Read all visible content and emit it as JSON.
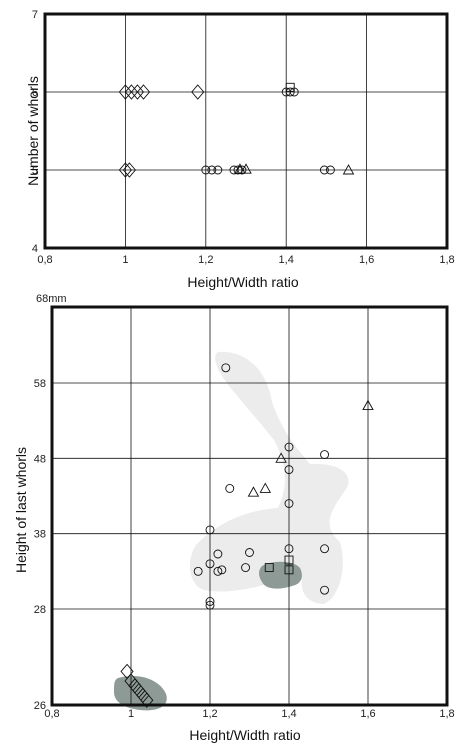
{
  "chart_data": [
    {
      "type": "scatter",
      "title": "",
      "xlabel": "Height/Width ratio",
      "ylabel": "Number of whorls",
      "xlim": [
        0.8,
        1.8
      ],
      "ylim": [
        4,
        7
      ],
      "x_ticks": [
        "0,8",
        "1",
        "1,2",
        "1,4",
        "1,6",
        "1,8"
      ],
      "y_ticks": [
        "4",
        "5",
        "6",
        "7"
      ],
      "grid": true,
      "series": [
        {
          "marker": "diamond",
          "points": [
            [
              1.0,
              6
            ],
            [
              1.015,
              6
            ],
            [
              1.03,
              6
            ],
            [
              1.045,
              6
            ],
            [
              1.18,
              6
            ],
            [
              1.0,
              5
            ],
            [
              1.01,
              5
            ]
          ]
        },
        {
          "marker": "circle",
          "points": [
            [
              1.2,
              5
            ],
            [
              1.215,
              5
            ],
            [
              1.23,
              5
            ],
            [
              1.27,
              5
            ],
            [
              1.28,
              5
            ],
            [
              1.29,
              5
            ],
            [
              1.4,
              6
            ],
            [
              1.41,
              6
            ],
            [
              1.42,
              6
            ],
            [
              1.495,
              5
            ],
            [
              1.51,
              5
            ]
          ]
        },
        {
          "marker": "square",
          "points": [
            [
              1.41,
              6.06
            ]
          ]
        },
        {
          "marker": "triangle",
          "points": [
            [
              1.285,
              5.01
            ],
            [
              1.3,
              5.01
            ],
            [
              1.555,
              5
            ]
          ]
        }
      ]
    },
    {
      "type": "scatter",
      "title": "",
      "xlabel": "Height/Width ratio",
      "ylabel": "Height of last whorls",
      "xlim": [
        0.8,
        1.8
      ],
      "ylim": [
        26,
        68
      ],
      "y_unit": "68mm",
      "x_ticks": [
        "0,8",
        "1",
        "1,2",
        "1,4",
        "1,6",
        "1,8"
      ],
      "y_ticks": [
        "26",
        "28",
        "38",
        "48",
        "58"
      ],
      "grid": true,
      "series": [
        {
          "marker": "circle",
          "points": [
            [
              1.24,
              60
            ],
            [
              1.4,
              49.5
            ],
            [
              1.49,
              48.5
            ],
            [
              1.4,
              46.5
            ],
            [
              1.25,
              44
            ],
            [
              1.4,
              42
            ],
            [
              1.2,
              38.5
            ],
            [
              1.2,
              34
            ],
            [
              1.22,
              35.3
            ],
            [
              1.3,
              35.5
            ],
            [
              1.4,
              36
            ],
            [
              1.49,
              36
            ],
            [
              1.17,
              33
            ],
            [
              1.22,
              33
            ],
            [
              1.23,
              33.2
            ],
            [
              1.29,
              33.5
            ],
            [
              1.49,
              30.5
            ],
            [
              1.2,
              29
            ],
            [
              1.2,
              28.5
            ]
          ]
        },
        {
          "marker": "triangle",
          "points": [
            [
              1.6,
              55
            ],
            [
              1.38,
              48
            ],
            [
              1.31,
              43.5
            ],
            [
              1.34,
              44
            ]
          ]
        },
        {
          "marker": "square",
          "points": [
            [
              1.4,
              34.5
            ],
            [
              1.4,
              33.2
            ],
            [
              1.35,
              33.5
            ]
          ]
        },
        {
          "marker": "diamond",
          "points": [
            [
              0.99,
              26.7
            ],
            [
              1.0,
              26.5
            ],
            [
              1.01,
              26.4
            ],
            [
              1.02,
              26.3
            ],
            [
              1.03,
              26.2
            ],
            [
              1.04,
              26.1
            ]
          ]
        }
      ]
    }
  ]
}
